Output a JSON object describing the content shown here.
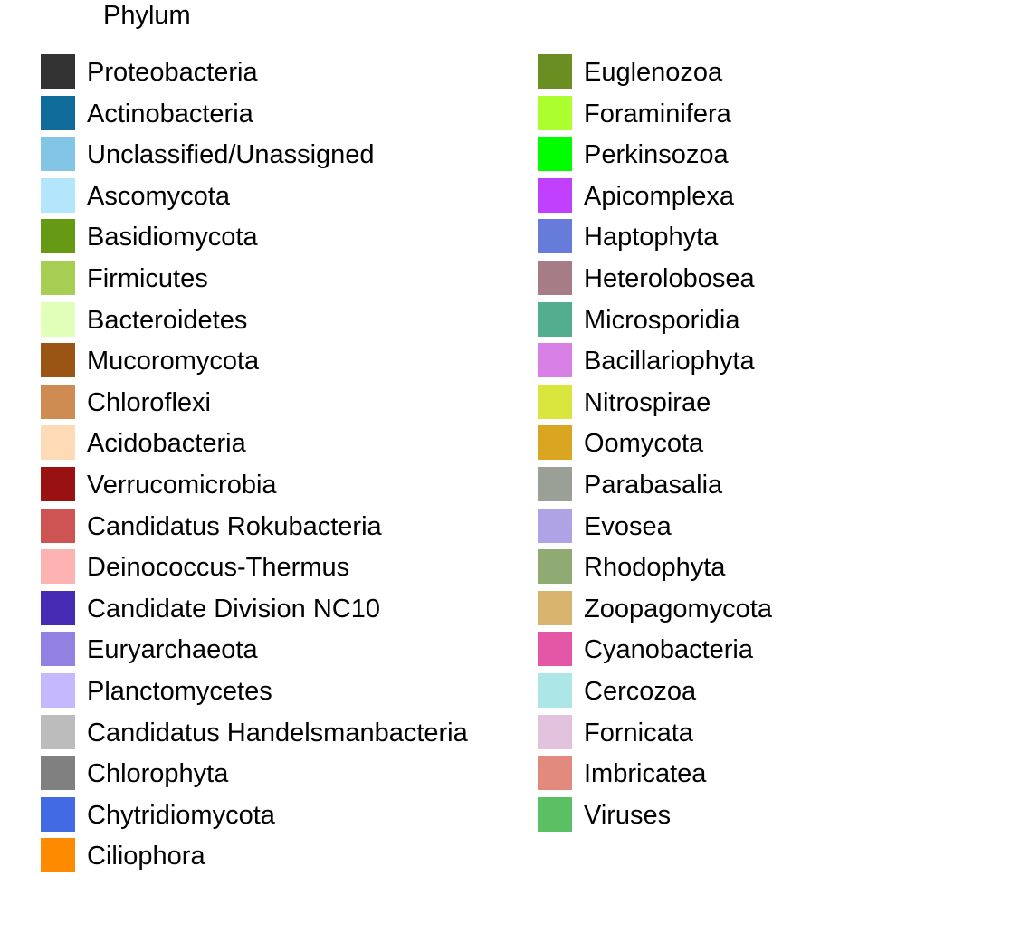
{
  "chart_data": {
    "type": "legend",
    "title": "Phylum",
    "columns": [
      [
        {
          "name": "Proteobacteria",
          "color": "#333333"
        },
        {
          "name": "Actinobacteria",
          "color": "#0F6C9A"
        },
        {
          "name": "Unclassified/Unassigned",
          "color": "#82C5E4"
        },
        {
          "name": "Ascomycota",
          "color": "#B3E6FD"
        },
        {
          "name": "Basidiomycota",
          "color": "#679A14"
        },
        {
          "name": "Firmicutes",
          "color": "#A7CE53"
        },
        {
          "name": "Bacteroidetes",
          "color": "#E1FFB8"
        },
        {
          "name": "Mucoromycota",
          "color": "#9A5413"
        },
        {
          "name": "Chloroflexi",
          "color": "#CE8C53"
        },
        {
          "name": "Acidobacteria",
          "color": "#FEDAB6"
        },
        {
          "name": "Verrucomicrobia",
          "color": "#9A1111"
        },
        {
          "name": "Candidatus Rokubacteria",
          "color": "#CE5454"
        },
        {
          "name": "Deinococcus-Thermus",
          "color": "#FEB3B3"
        },
        {
          "name": "Candidate Division NC10",
          "color": "#462CB4"
        },
        {
          "name": "Euryarchaeota",
          "color": "#9280E3"
        },
        {
          "name": "Planctomycetes",
          "color": "#C5B8FE"
        },
        {
          "name": "Candidatus Handelsmanbacteria",
          "color": "#BCBCBC"
        },
        {
          "name": "Chlorophyta",
          "color": "#808080"
        },
        {
          "name": "Chytridiomycota",
          "color": "#416AE3"
        },
        {
          "name": "Ciliophora",
          "color": "#FE8A00"
        }
      ],
      [
        {
          "name": "Euglenozoa",
          "color": "#6B8E22"
        },
        {
          "name": "Foraminifera",
          "color": "#ADFE2F"
        },
        {
          "name": "Perkinsozoa",
          "color": "#00FE00"
        },
        {
          "name": "Apicomplexa",
          "color": "#C040FE"
        },
        {
          "name": "Haptophyta",
          "color": "#677CDA"
        },
        {
          "name": "Heterolobosea",
          "color": "#A67D86"
        },
        {
          "name": "Microsporidia",
          "color": "#52AE8F"
        },
        {
          "name": "Bacillariophyta",
          "color": "#D880E6"
        },
        {
          "name": "Nitrospirae",
          "color": "#D8E63D"
        },
        {
          "name": "Oomycota",
          "color": "#DAA521"
        },
        {
          "name": "Parabasalia",
          "color": "#9AA096"
        },
        {
          "name": "Evosea",
          "color": "#AFA3E6"
        },
        {
          "name": "Rhodophyta",
          "color": "#90AA74"
        },
        {
          "name": "Zoopagomycota",
          "color": "#D9B46E"
        },
        {
          "name": "Cyanobacteria",
          "color": "#E456A6"
        },
        {
          "name": "Cercozoa",
          "color": "#ACE6E6"
        },
        {
          "name": "Fornicata",
          "color": "#E2C2DC"
        },
        {
          "name": "Imbricatea",
          "color": "#E38A7E"
        },
        {
          "name": "Viruses",
          "color": "#5BBF64"
        }
      ]
    ]
  }
}
